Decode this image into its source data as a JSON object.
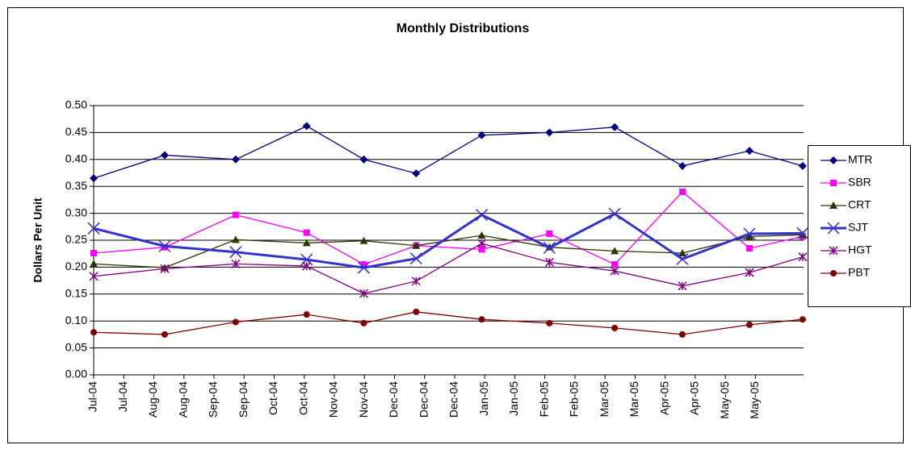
{
  "chart_data": {
    "type": "line",
    "title": "Monthly Distributions",
    "y_label": "Dollars Per Unit",
    "x": [
      0,
      2.36,
      4.72,
      7.08,
      8.98,
      10.72,
      12.9,
      15.15,
      17.32,
      19.57,
      21.8,
      23.57
    ],
    "xlim": [
      0,
      23.6
    ],
    "xticks": [
      {
        "value": 0,
        "label": "Jul-04"
      },
      {
        "value": 1,
        "label": "Jul-04"
      },
      {
        "value": 2,
        "label": "Aug-04"
      },
      {
        "value": 3,
        "label": "Aug-04"
      },
      {
        "value": 4,
        "label": "Sep-04"
      },
      {
        "value": 5,
        "label": "Sep-04"
      },
      {
        "value": 6,
        "label": "Oct-04"
      },
      {
        "value": 7,
        "label": "Oct-04"
      },
      {
        "value": 8,
        "label": "Nov-04"
      },
      {
        "value": 9,
        "label": "Nov-04"
      },
      {
        "value": 10,
        "label": "Dec-04"
      },
      {
        "value": 11,
        "label": "Dec-04"
      },
      {
        "value": 12,
        "label": "Dec-04"
      },
      {
        "value": 13,
        "label": "Jan-05"
      },
      {
        "value": 14,
        "label": "Jan-05"
      },
      {
        "value": 15,
        "label": "Feb-05"
      },
      {
        "value": 16,
        "label": "Feb-05"
      },
      {
        "value": 17,
        "label": "Mar-05"
      },
      {
        "value": 18,
        "label": "Mar-05"
      },
      {
        "value": 19,
        "label": "Apr-05"
      },
      {
        "value": 20,
        "label": "Apr-05"
      },
      {
        "value": 21,
        "label": "May-05"
      },
      {
        "value": 22,
        "label": "May-05"
      }
    ],
    "ylim": [
      0,
      0.5
    ],
    "yticks": [
      {
        "value": 0,
        "label": "0.00"
      },
      {
        "value": 0.05,
        "label": "0.05"
      },
      {
        "value": 0.1,
        "label": "0.10"
      },
      {
        "value": 0.15,
        "label": "0.15"
      },
      {
        "value": 0.2,
        "label": "0.20"
      },
      {
        "value": 0.25,
        "label": "0.25"
      },
      {
        "value": 0.3,
        "label": "0.30"
      },
      {
        "value": 0.35,
        "label": "0.35"
      },
      {
        "value": 0.4,
        "label": "0.40"
      },
      {
        "value": 0.45,
        "label": "0.45"
      },
      {
        "value": 0.5,
        "label": "0.50"
      }
    ],
    "grid": true,
    "legend": "right",
    "series": [
      {
        "name": "MTR",
        "color": "#000080",
        "marker": "diamond",
        "values": [
          0.365,
          0.408,
          0.4,
          0.462,
          0.4,
          0.374,
          0.445,
          0.45,
          0.46,
          0.388,
          0.416,
          0.388
        ]
      },
      {
        "name": "SBR",
        "color": "#ff00ff",
        "marker": "square",
        "values": [
          0.226,
          0.237,
          0.297,
          0.264,
          0.205,
          0.24,
          0.233,
          0.262,
          0.205,
          0.34,
          0.235,
          0.257
        ]
      },
      {
        "name": "CRT",
        "color": "#333300",
        "marker": "triangle",
        "values": [
          0.206,
          0.199,
          0.251,
          0.245,
          0.249,
          0.24,
          0.259,
          0.237,
          0.23,
          0.226,
          0.257,
          0.26
        ]
      },
      {
        "name": "SJT",
        "color": "#3333cc",
        "marker": "x",
        "values": [
          0.272,
          0.239,
          0.228,
          0.214,
          0.199,
          0.216,
          0.297,
          0.236,
          0.299,
          0.215,
          0.262,
          0.263
        ]
      },
      {
        "name": "HGT",
        "color": "#800080",
        "marker": "star",
        "values": [
          0.183,
          0.197,
          0.206,
          0.202,
          0.151,
          0.174,
          0.244,
          0.209,
          0.193,
          0.165,
          0.19,
          0.219
        ]
      },
      {
        "name": "PBT",
        "color": "#800000",
        "marker": "circle",
        "values": [
          0.079,
          0.075,
          0.098,
          0.112,
          0.096,
          0.117,
          0.103,
          0.096,
          0.087,
          0.075,
          0.093,
          0.103
        ]
      }
    ]
  }
}
